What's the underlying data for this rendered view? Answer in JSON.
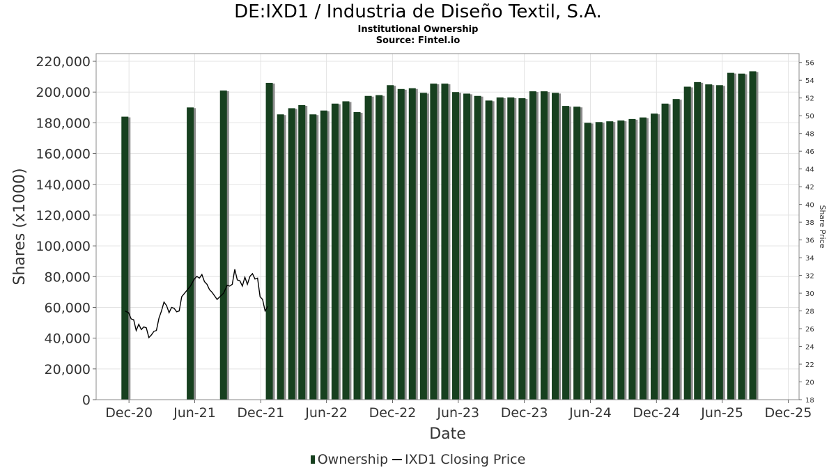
{
  "chart_data": {
    "type": "bar",
    "title": "DE:IXD1 / Industria de Diseño Textil, S.A.",
    "subtitle": "Institutional Ownership",
    "source": "Source: Fintel.io",
    "xlabel": "Date",
    "ylabel": "Shares (x1000)",
    "y2label": "Share Price",
    "ylim": [
      0,
      225000
    ],
    "y2lim": [
      18,
      57
    ],
    "xlim": [
      "2020-09-01",
      "2025-12-31"
    ],
    "grid": true,
    "legend_position": "bottom",
    "x_ticks": [
      {
        "date": "2020-12-01",
        "label": "Dec-20"
      },
      {
        "date": "2021-06-01",
        "label": "Jun-21"
      },
      {
        "date": "2021-12-01",
        "label": "Dec-21"
      },
      {
        "date": "2022-06-01",
        "label": "Jun-22"
      },
      {
        "date": "2022-12-01",
        "label": "Dec-22"
      },
      {
        "date": "2023-06-01",
        "label": "Jun-23"
      },
      {
        "date": "2023-12-01",
        "label": "Dec-23"
      },
      {
        "date": "2024-06-01",
        "label": "Jun-24"
      },
      {
        "date": "2024-12-01",
        "label": "Dec-24"
      },
      {
        "date": "2025-06-01",
        "label": "Jun-25"
      },
      {
        "date": "2025-12-01",
        "label": "Dec-25"
      }
    ],
    "y_ticks": [
      {
        "value": 0,
        "label": "0"
      },
      {
        "value": 20000,
        "label": "20,000"
      },
      {
        "value": 40000,
        "label": "40,000"
      },
      {
        "value": 60000,
        "label": "60,000"
      },
      {
        "value": 80000,
        "label": "80,000"
      },
      {
        "value": 100000,
        "label": "100,000"
      },
      {
        "value": 120000,
        "label": "120,000"
      },
      {
        "value": 140000,
        "label": "140,000"
      },
      {
        "value": 160000,
        "label": "160,000"
      },
      {
        "value": 180000,
        "label": "180,000"
      },
      {
        "value": 200000,
        "label": "200,000"
      },
      {
        "value": 220000,
        "label": "220,000"
      }
    ],
    "y2_ticks": [
      {
        "value": 18,
        "label": "18"
      },
      {
        "value": 20,
        "label": "20"
      },
      {
        "value": 22,
        "label": "22"
      },
      {
        "value": 24,
        "label": "24"
      },
      {
        "value": 26,
        "label": "26"
      },
      {
        "value": 28,
        "label": "28"
      },
      {
        "value": 30,
        "label": "30"
      },
      {
        "value": 32,
        "label": "32"
      },
      {
        "value": 34,
        "label": "34"
      },
      {
        "value": 36,
        "label": "36"
      },
      {
        "value": 38,
        "label": "38"
      },
      {
        "value": 40,
        "label": "40"
      },
      {
        "value": 42,
        "label": "42"
      },
      {
        "value": 44,
        "label": "44"
      },
      {
        "value": 46,
        "label": "46"
      },
      {
        "value": 48,
        "label": "48"
      },
      {
        "value": 50,
        "label": "50"
      },
      {
        "value": 52,
        "label": "52"
      },
      {
        "value": 54,
        "label": "54"
      },
      {
        "value": 56,
        "label": "56"
      }
    ],
    "series": [
      {
        "name": "Ownership",
        "type": "bar",
        "color": "#17401f",
        "points": [
          {
            "date": "2020-11-10",
            "value": 184000
          },
          {
            "date": "2021-05-10",
            "value": 190000
          },
          {
            "date": "2021-08-10",
            "value": 201000
          },
          {
            "date": "2021-12-15",
            "value": 206000
          },
          {
            "date": "2022-01-15",
            "value": 185500
          },
          {
            "date": "2022-02-15",
            "value": 189500
          },
          {
            "date": "2022-03-15",
            "value": 191500
          },
          {
            "date": "2022-04-15",
            "value": 185500
          },
          {
            "date": "2022-05-15",
            "value": 188000
          },
          {
            "date": "2022-06-15",
            "value": 192500
          },
          {
            "date": "2022-07-15",
            "value": 194000
          },
          {
            "date": "2022-08-15",
            "value": 187000
          },
          {
            "date": "2022-09-15",
            "value": 197500
          },
          {
            "date": "2022-10-15",
            "value": 198000
          },
          {
            "date": "2022-11-15",
            "value": 204500
          },
          {
            "date": "2022-12-15",
            "value": 202000
          },
          {
            "date": "2023-01-15",
            "value": 202500
          },
          {
            "date": "2023-02-15",
            "value": 199500
          },
          {
            "date": "2023-03-15",
            "value": 205500
          },
          {
            "date": "2023-04-15",
            "value": 205500
          },
          {
            "date": "2023-05-15",
            "value": 200000
          },
          {
            "date": "2023-06-15",
            "value": 199000
          },
          {
            "date": "2023-07-15",
            "value": 197500
          },
          {
            "date": "2023-08-15",
            "value": 194500
          },
          {
            "date": "2023-09-15",
            "value": 196500
          },
          {
            "date": "2023-10-15",
            "value": 196500
          },
          {
            "date": "2023-11-15",
            "value": 196000
          },
          {
            "date": "2023-12-15",
            "value": 200500
          },
          {
            "date": "2024-01-15",
            "value": 200500
          },
          {
            "date": "2024-02-15",
            "value": 199500
          },
          {
            "date": "2024-03-15",
            "value": 191000
          },
          {
            "date": "2024-04-15",
            "value": 190500
          },
          {
            "date": "2024-05-15",
            "value": 180000
          },
          {
            "date": "2024-06-15",
            "value": 180500
          },
          {
            "date": "2024-07-15",
            "value": 181000
          },
          {
            "date": "2024-08-15",
            "value": 181500
          },
          {
            "date": "2024-09-15",
            "value": 182500
          },
          {
            "date": "2024-10-15",
            "value": 183500
          },
          {
            "date": "2024-11-15",
            "value": 186000
          },
          {
            "date": "2024-12-15",
            "value": 192500
          },
          {
            "date": "2025-01-15",
            "value": 195500
          },
          {
            "date": "2025-02-15",
            "value": 203500
          },
          {
            "date": "2025-03-15",
            "value": 206500
          },
          {
            "date": "2025-04-15",
            "value": 205000
          },
          {
            "date": "2025-05-15",
            "value": 204500
          },
          {
            "date": "2025-06-15",
            "value": 212500
          },
          {
            "date": "2025-07-15",
            "value": 212000
          },
          {
            "date": "2025-08-15",
            "value": 213500
          }
        ]
      },
      {
        "name": "IXD1 Closing Price",
        "type": "line",
        "axis": "right",
        "color": "#000000",
        "points": [
          {
            "date": "2020-11-20",
            "value": 28.0
          },
          {
            "date": "2020-11-30",
            "value": 27.8
          },
          {
            "date": "2020-12-07",
            "value": 27.1
          },
          {
            "date": "2020-12-14",
            "value": 27.0
          },
          {
            "date": "2020-12-21",
            "value": 25.8
          },
          {
            "date": "2020-12-28",
            "value": 26.5
          },
          {
            "date": "2021-01-04",
            "value": 25.9
          },
          {
            "date": "2021-01-11",
            "value": 26.2
          },
          {
            "date": "2021-01-18",
            "value": 26.1
          },
          {
            "date": "2021-01-25",
            "value": 25.0
          },
          {
            "date": "2021-02-01",
            "value": 25.3
          },
          {
            "date": "2021-02-08",
            "value": 25.7
          },
          {
            "date": "2021-02-15",
            "value": 25.8
          },
          {
            "date": "2021-02-22",
            "value": 27.2
          },
          {
            "date": "2021-03-01",
            "value": 28.0
          },
          {
            "date": "2021-03-08",
            "value": 29.0
          },
          {
            "date": "2021-03-15",
            "value": 28.6
          },
          {
            "date": "2021-03-22",
            "value": 27.8
          },
          {
            "date": "2021-03-29",
            "value": 28.4
          },
          {
            "date": "2021-04-05",
            "value": 28.3
          },
          {
            "date": "2021-04-12",
            "value": 27.9
          },
          {
            "date": "2021-04-19",
            "value": 28.0
          },
          {
            "date": "2021-04-26",
            "value": 29.6
          },
          {
            "date": "2021-05-20",
            "value": 30.8
          },
          {
            "date": "2021-05-31",
            "value": 31.6
          },
          {
            "date": "2021-06-07",
            "value": 31.9
          },
          {
            "date": "2021-06-14",
            "value": 31.7
          },
          {
            "date": "2021-06-21",
            "value": 32.1
          },
          {
            "date": "2021-06-28",
            "value": 31.3
          },
          {
            "date": "2021-07-05",
            "value": 31.0
          },
          {
            "date": "2021-07-12",
            "value": 30.4
          },
          {
            "date": "2021-07-19",
            "value": 30.1
          },
          {
            "date": "2021-07-26",
            "value": 29.7
          },
          {
            "date": "2021-08-02",
            "value": 29.3
          },
          {
            "date": "2021-08-20",
            "value": 30.0
          },
          {
            "date": "2021-08-30",
            "value": 30.9
          },
          {
            "date": "2021-09-06",
            "value": 30.8
          },
          {
            "date": "2021-09-13",
            "value": 31.0
          },
          {
            "date": "2021-09-20",
            "value": 32.7
          },
          {
            "date": "2021-09-27",
            "value": 31.5
          },
          {
            "date": "2021-10-04",
            "value": 31.4
          },
          {
            "date": "2021-10-11",
            "value": 30.8
          },
          {
            "date": "2021-10-18",
            "value": 31.8
          },
          {
            "date": "2021-10-25",
            "value": 31.0
          },
          {
            "date": "2021-11-01",
            "value": 31.9
          },
          {
            "date": "2021-11-08",
            "value": 32.2
          },
          {
            "date": "2021-11-15",
            "value": 31.6
          },
          {
            "date": "2021-11-22",
            "value": 31.7
          },
          {
            "date": "2021-11-29",
            "value": 29.6
          },
          {
            "date": "2021-12-06",
            "value": 29.3
          },
          {
            "date": "2021-12-13",
            "value": 28.0
          },
          {
            "date": "2021-12-20",
            "value": 28.5
          }
        ]
      }
    ]
  },
  "legend": {
    "items": [
      "Ownership",
      "IXD1 Closing Price"
    ]
  }
}
